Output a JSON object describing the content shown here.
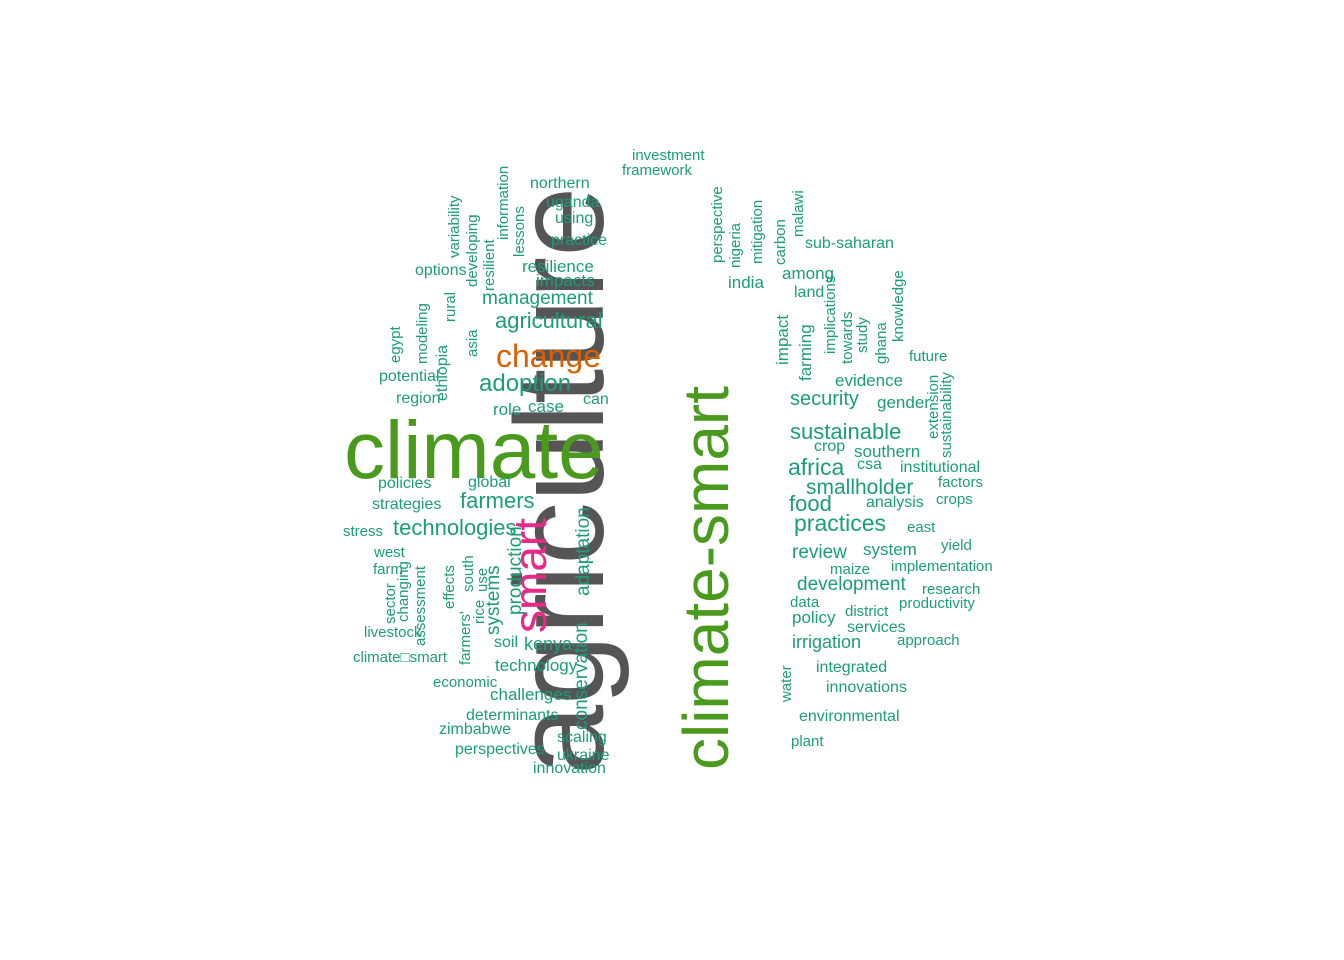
{
  "palette": {
    "gray": "#555555",
    "green": "#4a9a1e",
    "orange": "#d95f02",
    "magenta": "#e7298a",
    "teal": "#1b9e77"
  },
  "words": [
    {
      "text": "agriculture",
      "color": "gray",
      "rot": 1
    },
    {
      "text": "climate",
      "color": "green",
      "rot": 0
    },
    {
      "text": "climate-smart",
      "color": "green",
      "rot": 1
    },
    {
      "text": "smart",
      "color": "magenta",
      "rot": 1
    },
    {
      "text": "change",
      "color": "orange",
      "rot": 0
    },
    {
      "text": "adaptation",
      "color": "teal",
      "rot": 1
    },
    {
      "text": "conservation",
      "color": "teal",
      "rot": 1
    },
    {
      "text": "production",
      "color": "teal",
      "rot": 1
    },
    {
      "text": "systems",
      "color": "teal",
      "rot": 1
    },
    {
      "text": "adoption",
      "color": "teal",
      "rot": 0
    },
    {
      "text": "agricultural",
      "color": "teal",
      "rot": 0
    },
    {
      "text": "management",
      "color": "teal",
      "rot": 0
    },
    {
      "text": "impacts",
      "color": "teal",
      "rot": 0
    },
    {
      "text": "resilience",
      "color": "teal",
      "rot": 0
    },
    {
      "text": "practice",
      "color": "teal",
      "rot": 0
    },
    {
      "text": "using",
      "color": "teal",
      "rot": 0
    },
    {
      "text": "uganda",
      "color": "teal",
      "rot": 0
    },
    {
      "text": "northern",
      "color": "teal",
      "rot": 0
    },
    {
      "text": "investment",
      "color": "teal",
      "rot": 0
    },
    {
      "text": "framework",
      "color": "teal",
      "rot": 0
    },
    {
      "text": "information",
      "color": "teal",
      "rot": 1
    },
    {
      "text": "lessons",
      "color": "teal",
      "rot": 1
    },
    {
      "text": "resilient",
      "color": "teal",
      "rot": 1
    },
    {
      "text": "developing",
      "color": "teal",
      "rot": 1
    },
    {
      "text": "variability",
      "color": "teal",
      "rot": 1
    },
    {
      "text": "options",
      "color": "teal",
      "rot": 0
    },
    {
      "text": "rural",
      "color": "teal",
      "rot": 1
    },
    {
      "text": "asia",
      "color": "teal",
      "rot": 1
    },
    {
      "text": "modeling",
      "color": "teal",
      "rot": 1
    },
    {
      "text": "egypt",
      "color": "teal",
      "rot": 1
    },
    {
      "text": "ethiopia",
      "color": "teal",
      "rot": 1
    },
    {
      "text": "potential",
      "color": "teal",
      "rot": 0
    },
    {
      "text": "region",
      "color": "teal",
      "rot": 0
    },
    {
      "text": "role",
      "color": "teal",
      "rot": 0
    },
    {
      "text": "case",
      "color": "teal",
      "rot": 0
    },
    {
      "text": "can",
      "color": "teal",
      "rot": 0
    },
    {
      "text": "policies",
      "color": "teal",
      "rot": 0
    },
    {
      "text": "global",
      "color": "teal",
      "rot": 0
    },
    {
      "text": "strategies",
      "color": "teal",
      "rot": 0
    },
    {
      "text": "farmers",
      "color": "teal",
      "rot": 0
    },
    {
      "text": "technologies",
      "color": "teal",
      "rot": 0
    },
    {
      "text": "stress",
      "color": "teal",
      "rot": 0
    },
    {
      "text": "west",
      "color": "teal",
      "rot": 0
    },
    {
      "text": "farm",
      "color": "teal",
      "rot": 0
    },
    {
      "text": "changing",
      "color": "teal",
      "rot": 1
    },
    {
      "text": "sector",
      "color": "teal",
      "rot": 1
    },
    {
      "text": "assessment",
      "color": "teal",
      "rot": 1
    },
    {
      "text": "effects",
      "color": "teal",
      "rot": 1
    },
    {
      "text": "farmers'",
      "color": "teal",
      "rot": 1
    },
    {
      "text": "south",
      "color": "teal",
      "rot": 1
    },
    {
      "text": "rice",
      "color": "teal",
      "rot": 1
    },
    {
      "text": "use",
      "color": "teal",
      "rot": 1
    },
    {
      "text": "livestock",
      "color": "teal",
      "rot": 0
    },
    {
      "text": "soil",
      "color": "teal",
      "rot": 0
    },
    {
      "text": "kenya",
      "color": "teal",
      "rot": 0
    },
    {
      "text": "climate□smart",
      "color": "teal",
      "rot": 0
    },
    {
      "text": "technology",
      "color": "teal",
      "rot": 0
    },
    {
      "text": "economic",
      "color": "teal",
      "rot": 0
    },
    {
      "text": "challenges",
      "color": "teal",
      "rot": 0
    },
    {
      "text": "determinants",
      "color": "teal",
      "rot": 0
    },
    {
      "text": "zimbabwe",
      "color": "teal",
      "rot": 0
    },
    {
      "text": "scaling",
      "color": "teal",
      "rot": 0
    },
    {
      "text": "perspectives",
      "color": "teal",
      "rot": 0
    },
    {
      "text": "ukraine",
      "color": "teal",
      "rot": 0
    },
    {
      "text": "innovation",
      "color": "teal",
      "rot": 0
    },
    {
      "text": "perspective",
      "color": "teal",
      "rot": 1
    },
    {
      "text": "nigeria",
      "color": "teal",
      "rot": 1
    },
    {
      "text": "mitigation",
      "color": "teal",
      "rot": 1
    },
    {
      "text": "carbon",
      "color": "teal",
      "rot": 1
    },
    {
      "text": "malawi",
      "color": "teal",
      "rot": 1
    },
    {
      "text": "sub-saharan",
      "color": "teal",
      "rot": 0
    },
    {
      "text": "india",
      "color": "teal",
      "rot": 0
    },
    {
      "text": "among",
      "color": "teal",
      "rot": 0
    },
    {
      "text": "land",
      "color": "teal",
      "rot": 0
    },
    {
      "text": "implications",
      "color": "teal",
      "rot": 1
    },
    {
      "text": "towards",
      "color": "teal",
      "rot": 1
    },
    {
      "text": "study",
      "color": "teal",
      "rot": 1
    },
    {
      "text": "ghana",
      "color": "teal",
      "rot": 1
    },
    {
      "text": "knowledge",
      "color": "teal",
      "rot": 1
    },
    {
      "text": "impact",
      "color": "teal",
      "rot": 1
    },
    {
      "text": "farming",
      "color": "teal",
      "rot": 1
    },
    {
      "text": "future",
      "color": "teal",
      "rot": 0
    },
    {
      "text": "evidence",
      "color": "teal",
      "rot": 0
    },
    {
      "text": "extension",
      "color": "teal",
      "rot": 1
    },
    {
      "text": "sustainability",
      "color": "teal",
      "rot": 1
    },
    {
      "text": "security",
      "color": "teal",
      "rot": 0
    },
    {
      "text": "gender",
      "color": "teal",
      "rot": 0
    },
    {
      "text": "sustainable",
      "color": "teal",
      "rot": 0
    },
    {
      "text": "crop",
      "color": "teal",
      "rot": 0
    },
    {
      "text": "southern",
      "color": "teal",
      "rot": 0
    },
    {
      "text": "africa",
      "color": "teal",
      "rot": 0
    },
    {
      "text": "csa",
      "color": "teal",
      "rot": 0
    },
    {
      "text": "institutional",
      "color": "teal",
      "rot": 0
    },
    {
      "text": "smallholder",
      "color": "teal",
      "rot": 0
    },
    {
      "text": "factors",
      "color": "teal",
      "rot": 0
    },
    {
      "text": "food",
      "color": "teal",
      "rot": 0
    },
    {
      "text": "analysis",
      "color": "teal",
      "rot": 0
    },
    {
      "text": "crops",
      "color": "teal",
      "rot": 0
    },
    {
      "text": "practices",
      "color": "teal",
      "rot": 0
    },
    {
      "text": "east",
      "color": "teal",
      "rot": 0
    },
    {
      "text": "review",
      "color": "teal",
      "rot": 0
    },
    {
      "text": "system",
      "color": "teal",
      "rot": 0
    },
    {
      "text": "yield",
      "color": "teal",
      "rot": 0
    },
    {
      "text": "maize",
      "color": "teal",
      "rot": 0
    },
    {
      "text": "implementation",
      "color": "teal",
      "rot": 0
    },
    {
      "text": "development",
      "color": "teal",
      "rot": 0
    },
    {
      "text": "research",
      "color": "teal",
      "rot": 0
    },
    {
      "text": "data",
      "color": "teal",
      "rot": 0
    },
    {
      "text": "district",
      "color": "teal",
      "rot": 0
    },
    {
      "text": "productivity",
      "color": "teal",
      "rot": 0
    },
    {
      "text": "policy",
      "color": "teal",
      "rot": 0
    },
    {
      "text": "services",
      "color": "teal",
      "rot": 0
    },
    {
      "text": "approach",
      "color": "teal",
      "rot": 0
    },
    {
      "text": "irrigation",
      "color": "teal",
      "rot": 0
    },
    {
      "text": "water",
      "color": "teal",
      "rot": 1
    },
    {
      "text": "integrated",
      "color": "teal",
      "rot": 0
    },
    {
      "text": "innovations",
      "color": "teal",
      "rot": 0
    },
    {
      "text": "environmental",
      "color": "teal",
      "rot": 0
    },
    {
      "text": "plant",
      "color": "teal",
      "rot": 0
    }
  ]
}
